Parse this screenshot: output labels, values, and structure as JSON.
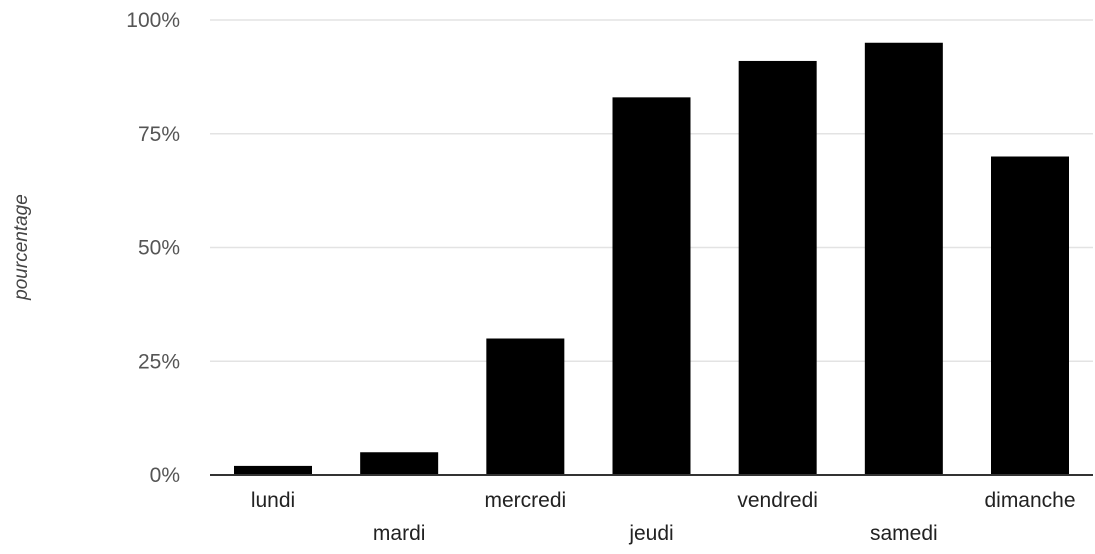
{
  "chart_data": {
    "type": "bar",
    "title": "",
    "xlabel": "",
    "ylabel": "pourcentage",
    "categories": [
      "lundi",
      "mardi",
      "mercredi",
      "jeudi",
      "vendredi",
      "samedi",
      "dimanche"
    ],
    "values": [
      2,
      5,
      30,
      83,
      91,
      95,
      70
    ],
    "ylim": [
      0,
      100
    ],
    "yticks": [
      0,
      25,
      50,
      75,
      100
    ],
    "ytick_labels": [
      "0%",
      "25%",
      "50%",
      "75%",
      "100%"
    ],
    "grid": true,
    "legend": "none",
    "bar_color": "#000000"
  }
}
